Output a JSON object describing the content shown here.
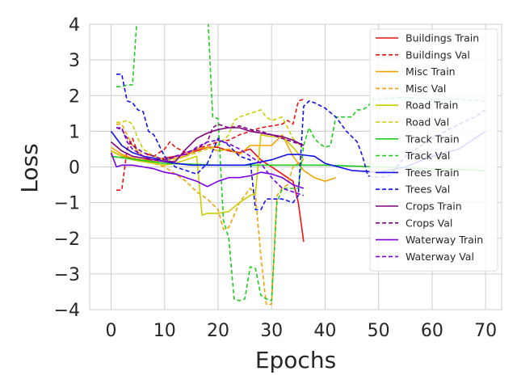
{
  "chart_data": {
    "type": "line",
    "xlabel": "Epochs",
    "ylabel": "Loss",
    "xlim": [
      -4,
      73
    ],
    "ylim": [
      -4,
      4
    ],
    "xticks": [
      0,
      10,
      20,
      30,
      40,
      50,
      60,
      70
    ],
    "yticks": [
      -4,
      -3,
      -2,
      -1,
      0,
      1,
      2,
      3,
      4
    ],
    "xtick_labels": [
      "0",
      "10",
      "20",
      "30",
      "40",
      "50",
      "60",
      "70"
    ],
    "ytick_labels": [
      "−4",
      "−3",
      "−2",
      "−1",
      "0",
      "1",
      "2",
      "3",
      "4"
    ],
    "grid": true,
    "legend_position": "upper right",
    "series": [
      {
        "name": "Buildings Train",
        "color": "#ee1111",
        "style": "solid",
        "x": [
          0,
          2,
          4,
          6,
          8,
          10,
          12,
          14,
          16,
          18,
          20,
          22,
          24,
          26,
          28,
          30,
          32,
          34,
          35,
          36
        ],
        "y": [
          0.45,
          0.3,
          0.25,
          0.2,
          0.2,
          0.25,
          0.3,
          0.35,
          0.45,
          0.55,
          0.55,
          0.45,
          0.4,
          0.5,
          0.2,
          0.0,
          -0.2,
          -0.4,
          -1.0,
          -2.1
        ]
      },
      {
        "name": "Buildings Val",
        "color": "#ee1111",
        "style": "dashed",
        "x": [
          1,
          2,
          3,
          4,
          5,
          6,
          7,
          8,
          9,
          10,
          11,
          12,
          14,
          16,
          18,
          20,
          22,
          24,
          26,
          28,
          30,
          32,
          33,
          34,
          35,
          36
        ],
        "y": [
          -0.65,
          -0.65,
          0.5,
          0.8,
          0.4,
          0.3,
          0.35,
          0.3,
          0.4,
          0.5,
          0.7,
          0.55,
          0.4,
          0.5,
          0.6,
          0.7,
          0.75,
          0.9,
          1.0,
          1.1,
          1.15,
          1.2,
          1.3,
          1.2,
          1.85,
          1.9
        ]
      },
      {
        "name": "Misc Train",
        "color": "#f5a300",
        "style": "solid",
        "x": [
          0,
          2,
          4,
          6,
          8,
          10,
          12,
          14,
          16,
          18,
          20,
          22,
          24,
          26,
          28,
          30,
          32,
          34,
          36,
          38,
          40,
          42
        ],
        "y": [
          0.55,
          0.35,
          0.25,
          0.2,
          0.15,
          0.2,
          0.25,
          0.3,
          0.5,
          0.55,
          0.45,
          0.5,
          0.35,
          0.6,
          0.6,
          0.6,
          0.9,
          0.3,
          -0.1,
          -0.3,
          -0.4,
          -0.3
        ]
      },
      {
        "name": "Misc Val",
        "color": "#f5a300",
        "style": "dashed",
        "x": [
          1,
          2,
          3,
          4,
          6,
          8,
          10,
          12,
          14,
          16,
          18,
          20,
          21,
          22,
          24,
          26,
          27,
          28,
          29,
          30,
          31,
          32,
          33,
          34,
          36
        ],
        "y": [
          1.2,
          1.2,
          0.9,
          0.6,
          0.3,
          0.1,
          0.0,
          -0.2,
          -0.4,
          -0.7,
          -0.9,
          -1.2,
          -1.75,
          -1.7,
          -1.0,
          -0.6,
          -0.8,
          -2.5,
          -3.85,
          -3.85,
          -0.8,
          -0.6,
          -0.5,
          0.0,
          0.2
        ]
      },
      {
        "name": "Road Train",
        "color": "#cccc00",
        "style": "solid",
        "x": [
          0,
          2,
          4,
          6,
          8,
          10,
          12,
          14,
          16,
          17,
          18,
          20,
          22,
          24,
          26,
          27,
          28,
          30,
          32,
          34,
          36
        ],
        "y": [
          0.45,
          0.3,
          0.2,
          0.15,
          0.1,
          0.05,
          0.1,
          0.2,
          0.3,
          -1.35,
          -1.3,
          -1.3,
          -1.25,
          -1.0,
          -0.8,
          -0.75,
          0.9,
          0.85,
          0.85,
          0.55,
          0.2
        ]
      },
      {
        "name": "Road Val",
        "color": "#cccc00",
        "style": "dashed",
        "x": [
          1,
          2,
          3,
          4,
          5,
          6,
          8,
          10,
          12,
          14,
          16,
          18,
          20,
          22,
          23,
          24,
          26,
          28,
          29,
          30,
          32,
          34,
          36
        ],
        "y": [
          1.25,
          1.25,
          1.3,
          1.2,
          0.8,
          0.5,
          0.3,
          0.2,
          0.2,
          0.3,
          0.4,
          0.5,
          0.6,
          0.9,
          1.3,
          1.4,
          1.5,
          1.6,
          1.4,
          1.3,
          1.4,
          0.8,
          0.5
        ]
      },
      {
        "name": "Track Train",
        "color": "#1fcc1f",
        "style": "solid",
        "x": [
          0,
          5,
          10,
          20,
          30,
          40,
          50,
          60,
          70
        ],
        "y": [
          0.3,
          0.2,
          0.1,
          0.05,
          0.05,
          0.05,
          0.0,
          -0.05,
          -0.1
        ]
      },
      {
        "name": "Track Val",
        "color": "#1fcc1f",
        "style": "dashed",
        "x": [
          1,
          2,
          3,
          4,
          5,
          18,
          19,
          20,
          21,
          22,
          23,
          24,
          25,
          26,
          27,
          28,
          29,
          30,
          31,
          32,
          35,
          36,
          37,
          38,
          39,
          40,
          41,
          42,
          43,
          44,
          45,
          46,
          47,
          48,
          49,
          50,
          55,
          60,
          65,
          70
        ],
        "y": [
          2.25,
          2.25,
          2.3,
          2.3,
          4.5,
          4.5,
          1.4,
          1.35,
          -1.5,
          -2.0,
          -3.7,
          -3.75,
          -3.7,
          -2.8,
          -2.85,
          -3.6,
          -3.7,
          -3.75,
          -1.0,
          -0.6,
          -0.6,
          0.6,
          1.1,
          0.8,
          0.65,
          0.55,
          0.6,
          1.4,
          1.4,
          1.4,
          1.4,
          1.6,
          1.6,
          1.7,
          1.9,
          1.9,
          1.95,
          1.9,
          1.9,
          1.85
        ]
      },
      {
        "name": "Trees Train",
        "color": "#1111ee",
        "style": "solid",
        "x": [
          0,
          2,
          4,
          6,
          8,
          10,
          12,
          15,
          20,
          25,
          30,
          32,
          33,
          35,
          38,
          40,
          45,
          50,
          55,
          60,
          65,
          68,
          70
        ],
        "y": [
          1.0,
          0.6,
          0.4,
          0.3,
          0.25,
          0.15,
          0.1,
          0.05,
          0.05,
          0.05,
          0.2,
          0.3,
          0.35,
          0.35,
          0.3,
          0.1,
          -0.1,
          -0.15,
          0.0,
          0.3,
          0.5,
          0.8,
          1.0
        ]
      },
      {
        "name": "Trees Val",
        "color": "#1111ee",
        "style": "dashed",
        "x": [
          1,
          2,
          3,
          4,
          5,
          6,
          7,
          8,
          9,
          10,
          12,
          14,
          16,
          18,
          20,
          22,
          24,
          26,
          27,
          28,
          29,
          30,
          32,
          34,
          35,
          36,
          37,
          38,
          40,
          42,
          44,
          46,
          47,
          48,
          50,
          52,
          55,
          60,
          65,
          68,
          70
        ],
        "y": [
          2.6,
          2.6,
          1.85,
          1.8,
          1.6,
          1.55,
          1.0,
          0.9,
          0.6,
          0.3,
          0.0,
          -0.1,
          -0.2,
          0.1,
          0.8,
          0.6,
          0.3,
          0.2,
          -1.2,
          -1.2,
          -0.9,
          -0.9,
          -0.9,
          -1.0,
          -0.8,
          1.7,
          1.85,
          1.8,
          1.65,
          1.4,
          1.0,
          0.7,
          0.3,
          -0.25,
          -0.3,
          -0.25,
          0.3,
          0.8,
          1.2,
          1.4,
          1.6
        ]
      },
      {
        "name": "Crops Train",
        "color": "#800080",
        "style": "solid",
        "x": [
          0,
          2,
          4,
          6,
          8,
          10,
          12,
          14,
          16,
          18,
          20,
          22,
          24,
          26,
          28,
          30,
          32,
          34,
          36
        ],
        "y": [
          0.7,
          0.45,
          0.3,
          0.25,
          0.2,
          0.15,
          0.15,
          0.5,
          0.8,
          0.95,
          1.05,
          1.1,
          1.1,
          1.0,
          0.95,
          0.9,
          0.85,
          0.75,
          0.6
        ]
      },
      {
        "name": "Crops Val",
        "color": "#800080",
        "style": "dashed",
        "x": [
          1,
          2,
          3,
          4,
          6,
          8,
          10,
          12,
          14,
          16,
          18,
          19,
          20,
          22,
          24,
          26,
          28,
          30,
          32,
          34,
          36
        ],
        "y": [
          1.1,
          1.05,
          0.8,
          0.6,
          0.4,
          0.3,
          0.2,
          0.3,
          0.4,
          0.5,
          0.7,
          1.1,
          1.2,
          1.1,
          1.15,
          1.05,
          1.0,
          0.9,
          0.8,
          0.7,
          0.6
        ]
      },
      {
        "name": "Waterway Train",
        "color": "#7a00e6",
        "style": "solid",
        "x": [
          0,
          1,
          2,
          4,
          6,
          8,
          10,
          12,
          14,
          16,
          18,
          20,
          22,
          24,
          26,
          28,
          30,
          32,
          34,
          36
        ],
        "y": [
          0.4,
          0.0,
          0.05,
          0.05,
          0.0,
          -0.05,
          -0.15,
          -0.2,
          -0.3,
          -0.4,
          -0.55,
          -0.4,
          -0.3,
          -0.3,
          -0.25,
          -0.15,
          -0.2,
          -0.3,
          -0.5,
          -0.6
        ]
      },
      {
        "name": "Waterway Val",
        "color": "#7a00e6",
        "style": "dashed",
        "x": [
          1,
          2,
          3,
          4,
          6,
          8,
          10,
          12,
          14,
          16,
          18,
          20,
          22,
          24,
          26,
          28,
          30,
          32,
          34,
          36
        ],
        "y": [
          1.1,
          1.1,
          0.7,
          0.5,
          0.3,
          0.2,
          0.15,
          0.3,
          0.35,
          0.55,
          0.7,
          0.75,
          0.65,
          0.5,
          0.3,
          0.1,
          -0.3,
          -0.6,
          -0.7,
          -0.8
        ]
      }
    ]
  }
}
